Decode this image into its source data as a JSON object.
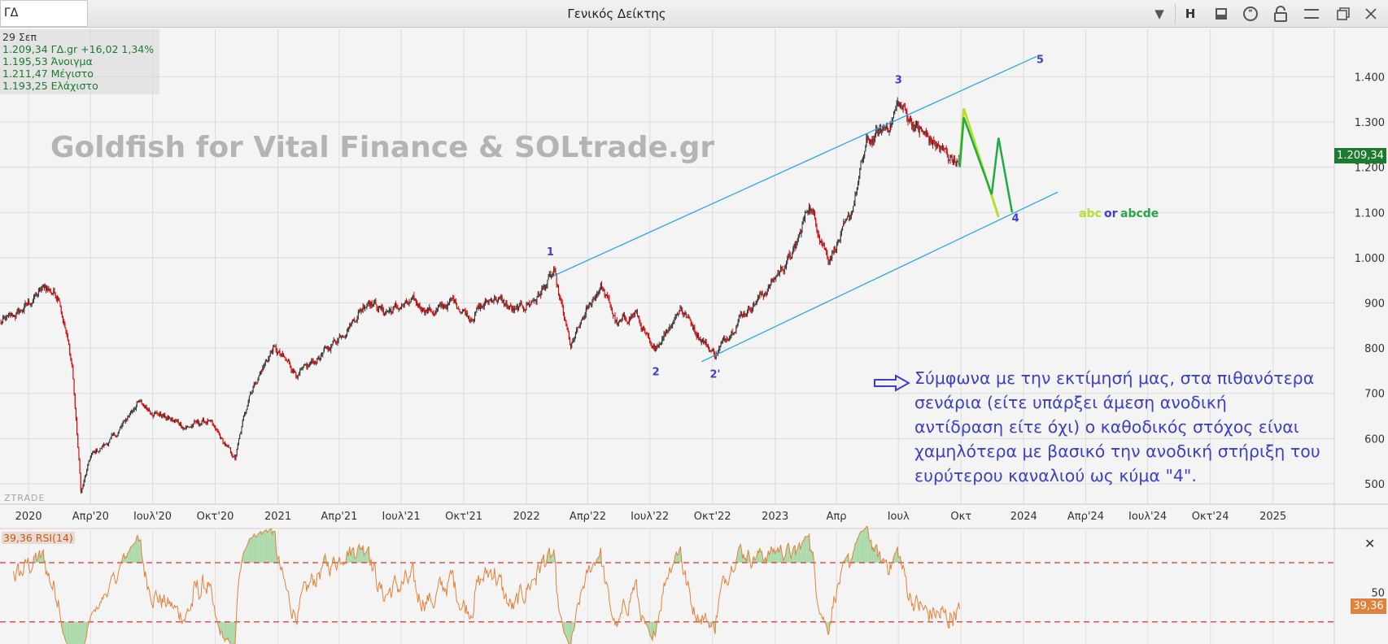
{
  "window": {
    "title": "Γενικός Δείκτης",
    "symbol": "ΓΔ"
  },
  "toolbar": {
    "h_label": "H",
    "icons": [
      "chevron-down-icon",
      "panel-icon",
      "comment-icon",
      "lock-icon",
      "menu-icon",
      "restore-icon",
      "close-icon"
    ]
  },
  "info": {
    "date": "29 Σεπ",
    "last_line": "1.209,34 ΓΔ.gr +16,02 1,34%",
    "open_line": "1.195,53 Άνοιγμα",
    "high_line": "1.211,47 Μέγιστο",
    "low_line": "1.193,25 Ελάχιστο"
  },
  "watermark": "Goldfish for Vital Finance & SOLtrade.gr",
  "brand": "ZTRADE",
  "last_price_tag": "1.209,34",
  "rsi_label": "39,36 RSI(14)",
  "rsi_tag": "39,36",
  "commentary": [
    "Σύμφωνα με την εκτίμησή μας, στα πιθανότερα",
    "σενάρια (είτε υπάρξει άμεση ανοδική",
    "αντίδραση είτε όχι) ο καθοδικός στόχος είναι",
    "χαμηλότερα με βασικό την ανοδική στήριξη του",
    "ευρύτερου καναλιού ως κύμα \"4\"."
  ],
  "colors": {
    "up": "#333333",
    "down": "#d40000",
    "channel": "#2aa7e8",
    "wave": "#3f3fcc",
    "abc": "#b5e02c",
    "abcde": "#22a845",
    "rsi": "#e0823c",
    "rsi_band": "#e03030",
    "last_price": "#1b7a2e"
  },
  "chart_data": [
    {
      "type": "candlestick",
      "title": "Γενικός Δείκτης",
      "x_ticks": [
        "2020",
        "Απρ'20",
        "Ιουλ'20",
        "Οκτ'20",
        "2021",
        "Απρ'21",
        "Ιουλ'21",
        "Οκτ'21",
        "2022",
        "Απρ'22",
        "Ιουλ'22",
        "Οκτ'22",
        "2023",
        "Απρ",
        "Ιουλ",
        "Οκτ",
        "2024",
        "Απρ'24",
        "Ιουλ'24",
        "Οκτ'24",
        "2025"
      ],
      "y_ticks": [
        500,
        600,
        700,
        800,
        900,
        1000,
        1100,
        1200,
        1300,
        1400
      ],
      "y_tick_labels": [
        "500",
        "600",
        "700",
        "800",
        "900",
        "1.000",
        "1.100",
        "1.200",
        "1.300",
        "1.400"
      ],
      "ylim": [
        455,
        1505
      ],
      "x_range": [
        "2019-11-20",
        "2025-04-01"
      ],
      "grid": true,
      "keypoints": [
        [
          "2019-11-20",
          855
        ],
        [
          "2019-12-20",
          880
        ],
        [
          "2020-01-25",
          935
        ],
        [
          "2020-02-15",
          915
        ],
        [
          "2020-03-05",
          760
        ],
        [
          "2020-03-18",
          480
        ],
        [
          "2020-04-01",
          560
        ],
        [
          "2020-05-10",
          610
        ],
        [
          "2020-06-08",
          680
        ],
        [
          "2020-07-15",
          650
        ],
        [
          "2020-08-20",
          625
        ],
        [
          "2020-09-20",
          640
        ],
        [
          "2020-10-30",
          555
        ],
        [
          "2020-11-20",
          700
        ],
        [
          "2020-12-25",
          800
        ],
        [
          "2021-02-01",
          740
        ],
        [
          "2021-03-10",
          790
        ],
        [
          "2021-04-15",
          850
        ],
        [
          "2021-05-15",
          910
        ],
        [
          "2021-06-05",
          880
        ],
        [
          "2021-07-20",
          900
        ],
        [
          "2021-08-20",
          880
        ],
        [
          "2021-09-15",
          905
        ],
        [
          "2021-10-10",
          870
        ],
        [
          "2021-11-15",
          915
        ],
        [
          "2021-12-15",
          880
        ],
        [
          "2022-01-15",
          910
        ],
        [
          "2022-02-10",
          965
        ],
        [
          "2022-03-07",
          800
        ],
        [
          "2022-03-30",
          880
        ],
        [
          "2022-04-20",
          940
        ],
        [
          "2022-05-15",
          850
        ],
        [
          "2022-06-10",
          880
        ],
        [
          "2022-07-05",
          790
        ],
        [
          "2022-08-15",
          890
        ],
        [
          "2022-09-15",
          820
        ],
        [
          "2022-10-05",
          785
        ],
        [
          "2022-11-10",
          870
        ],
        [
          "2022-12-15",
          920
        ],
        [
          "2023-01-31",
          1020
        ],
        [
          "2023-02-20",
          1120
        ],
        [
          "2023-03-20",
          1000
        ],
        [
          "2023-04-20",
          1080
        ],
        [
          "2023-05-15",
          1250
        ],
        [
          "2023-06-20",
          1300
        ],
        [
          "2023-07-01",
          1340
        ],
        [
          "2023-08-01",
          1280
        ],
        [
          "2023-09-01",
          1240
        ],
        [
          "2023-09-29",
          1209
        ]
      ],
      "last": {
        "date": "2023-09-29",
        "close": 1209.34,
        "open": 1195.53,
        "high": 1211.47,
        "low": 1193.25,
        "change": 16.02,
        "change_pct": 1.34
      }
    },
    {
      "type": "line",
      "title": "RSI(14)",
      "y_ticks": [
        50
      ],
      "ylim": [
        15,
        92
      ],
      "bands": [
        70,
        30
      ],
      "last_value": 39.36
    }
  ],
  "annotations": {
    "channel_upper": [
      [
        "2022-02-10",
        960
      ],
      [
        "2024-01-20",
        1445
      ]
    ],
    "channel_lower": [
      [
        "2022-09-15",
        770
      ],
      [
        "2024-02-20",
        1145
      ]
    ],
    "abc_path": [
      [
        "2023-09-29",
        1210
      ],
      [
        "2023-10-05",
        1330
      ],
      [
        "2023-11-25",
        1090
      ]
    ],
    "abcde_path": [
      [
        "2023-09-29",
        1200
      ],
      [
        "2023-10-05",
        1310
      ],
      [
        "2023-11-15",
        1140
      ],
      [
        "2023-11-25",
        1265
      ],
      [
        "2023-12-15",
        1100
      ]
    ],
    "waves": [
      {
        "label": "1",
        "x": "2022-02-05",
        "y": 1005
      },
      {
        "label": "2",
        "x": "2022-07-10",
        "y": 740
      },
      {
        "label": "2'",
        "x": "2022-10-05",
        "y": 735
      },
      {
        "label": "3",
        "x": "2023-07-01",
        "y": 1385
      },
      {
        "label": "4",
        "x": "2023-12-20",
        "y": 1080
      },
      {
        "label": "5",
        "x": "2024-01-25",
        "y": 1430
      }
    ],
    "legend_abc": "abc",
    "legend_or": "or",
    "legend_abcde": "abcde"
  }
}
